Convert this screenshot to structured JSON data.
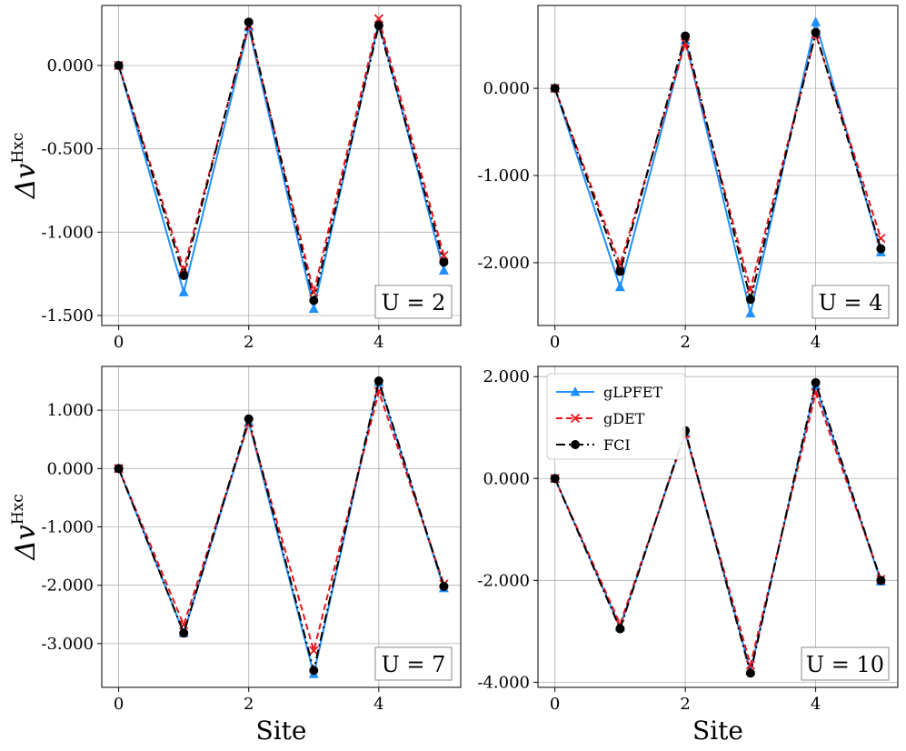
{
  "chart_data": [
    {
      "type": "line",
      "panel": "top-left",
      "annotation": "U = 2",
      "xlabel": "",
      "ylabel": "Δv^Hxc",
      "x": [
        0,
        1,
        2,
        3,
        4,
        5
      ],
      "xticks": [
        0,
        2,
        4
      ],
      "xticklabels": [
        "0",
        "2",
        "4"
      ],
      "xlim": [
        -0.26,
        5.26
      ],
      "ylim": [
        -1.56,
        0.36
      ],
      "yticks": [
        0,
        -0.5,
        -1.0,
        -1.5
      ],
      "yticklabels": [
        "0.000",
        "-0.500",
        "-1.000",
        "-1.500"
      ],
      "grid": true,
      "series": [
        {
          "name": "gLPFET",
          "values": [
            0.0,
            -1.36,
            0.23,
            -1.46,
            0.26,
            -1.23
          ]
        },
        {
          "name": "gDET",
          "values": [
            0.0,
            -1.22,
            0.24,
            -1.36,
            0.28,
            -1.14
          ]
        },
        {
          "name": "FCI",
          "values": [
            0.0,
            -1.26,
            0.26,
            -1.41,
            0.24,
            -1.18
          ]
        }
      ]
    },
    {
      "type": "line",
      "panel": "top-right",
      "annotation": "U = 4",
      "xlabel": "",
      "ylabel": "",
      "x": [
        0,
        1,
        2,
        3,
        4,
        5
      ],
      "xticks": [
        0,
        2,
        4
      ],
      "xticklabels": [
        "0",
        "2",
        "4"
      ],
      "xlim": [
        -0.26,
        5.26
      ],
      "ylim": [
        -2.72,
        0.95
      ],
      "yticks": [
        0,
        -1.0,
        -2.0
      ],
      "yticklabels": [
        "0.000",
        "-1.000",
        "-2.000"
      ],
      "grid": true,
      "series": [
        {
          "name": "gLPFET",
          "values": [
            0.0,
            -2.28,
            0.55,
            -2.58,
            0.76,
            -1.88
          ]
        },
        {
          "name": "gDET",
          "values": [
            0.0,
            -2.02,
            0.52,
            -2.3,
            0.62,
            -1.72
          ]
        },
        {
          "name": "FCI",
          "values": [
            0.0,
            -2.1,
            0.6,
            -2.42,
            0.64,
            -1.84
          ]
        }
      ]
    },
    {
      "type": "line",
      "panel": "bottom-left",
      "annotation": "U = 7",
      "xlabel": "Site",
      "ylabel": "Δv^Hxc",
      "x": [
        0,
        1,
        2,
        3,
        4,
        5
      ],
      "xticks": [
        0,
        2,
        4
      ],
      "xticklabels": [
        "0",
        "2",
        "4"
      ],
      "xlim": [
        -0.26,
        5.26
      ],
      "ylim": [
        -3.75,
        1.75
      ],
      "yticks": [
        1.0,
        0,
        -1.0,
        -2.0,
        -3.0
      ],
      "yticklabels": [
        "1.000",
        "0.000",
        "-1.000",
        "-2.000",
        "-3.000"
      ],
      "grid": true,
      "series": [
        {
          "name": "gLPFET",
          "values": [
            0.0,
            -2.82,
            0.8,
            -3.52,
            1.48,
            -2.05
          ]
        },
        {
          "name": "gDET",
          "values": [
            0.0,
            -2.68,
            0.78,
            -3.12,
            1.32,
            -1.98
          ]
        },
        {
          "name": "FCI",
          "values": [
            0.0,
            -2.82,
            0.85,
            -3.46,
            1.5,
            -2.02
          ]
        }
      ]
    },
    {
      "type": "line",
      "panel": "bottom-right",
      "annotation": "U = 10",
      "xlabel": "Site",
      "ylabel": "",
      "x": [
        0,
        1,
        2,
        3,
        4,
        5
      ],
      "xticks": [
        0,
        2,
        4
      ],
      "xticklabels": [
        "0",
        "2",
        "4"
      ],
      "xlim": [
        -0.26,
        5.26
      ],
      "ylim": [
        -4.1,
        2.2
      ],
      "yticks": [
        2.0,
        0,
        -2.0,
        -4.0
      ],
      "yticklabels": [
        "2.000",
        "0.000",
        "-2.000",
        "-4.000"
      ],
      "grid": true,
      "legend": {
        "position": "upper-left",
        "entries": [
          "gLPFET",
          "gDET",
          "FCI"
        ]
      },
      "series": [
        {
          "name": "gLPFET",
          "values": [
            0.0,
            -2.92,
            0.9,
            -3.78,
            1.82,
            -2.02
          ]
        },
        {
          "name": "gDET",
          "values": [
            0.0,
            -2.86,
            0.88,
            -3.66,
            1.68,
            -1.98
          ]
        },
        {
          "name": "FCI",
          "values": [
            0.0,
            -2.95,
            0.94,
            -3.82,
            1.88,
            -2.0
          ]
        }
      ]
    }
  ],
  "styles": {
    "gLPFET": {
      "color": "#1e90ff",
      "marker": "triangle",
      "dash": ""
    },
    "gDET": {
      "color": "#e8131b",
      "marker": "x",
      "dash": "7,4"
    },
    "FCI": {
      "color": "#000000",
      "marker": "circle",
      "dash": "10,4,2,4"
    }
  }
}
